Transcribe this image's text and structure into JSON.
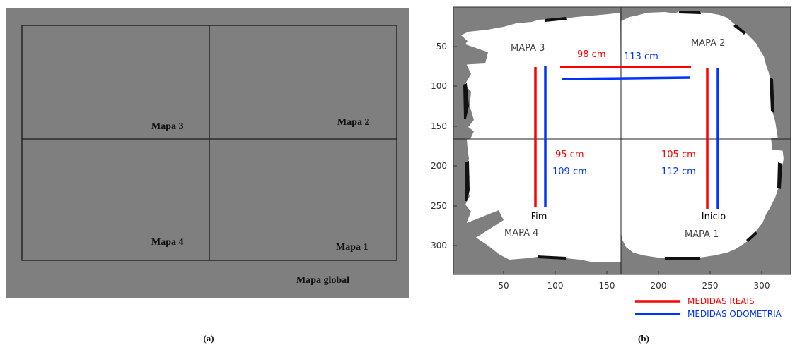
{
  "panel_a": {
    "labels": {
      "mapa3": "Mapa 3",
      "mapa2": "Mapa 2",
      "mapa4": "Mapa 4",
      "mapa1": "Mapa 1",
      "global": "Mapa global"
    },
    "caption": "(a)"
  },
  "panel_b": {
    "x_ticks": [
      "50",
      "100",
      "150",
      "200",
      "250",
      "300"
    ],
    "y_ticks": [
      "50",
      "100",
      "150",
      "200",
      "250",
      "300"
    ],
    "map_labels": {
      "mapa3": "MAPA 3",
      "mapa2": "MAPA 2",
      "mapa4": "MAPA 4",
      "mapa1": "MAPA 1"
    },
    "measurements": {
      "top_real": "98 cm",
      "top_odo": "113 cm",
      "left_real": "95 cm",
      "left_odo": "109 cm",
      "right_real": "105 cm",
      "right_odo": "112 cm"
    },
    "endpoints": {
      "end": "Fim",
      "start": "Inicio"
    },
    "legend": {
      "real": "MEDIDAS REAIS",
      "odo": "MEDIDAS ODOMETRIA"
    },
    "caption": "(b)"
  },
  "colors": {
    "map_gray": "#7f7f7f",
    "real": "#ff0000",
    "odometry": "#0033ff"
  }
}
